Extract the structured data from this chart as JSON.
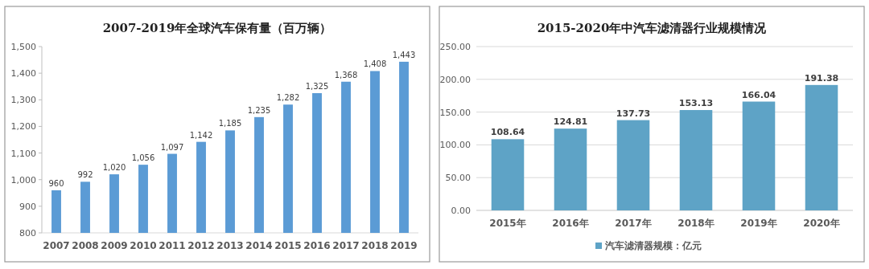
{
  "chart_data": [
    {
      "type": "bar",
      "title": "2007-2019年全球汽车保有量（百万辆）",
      "categories": [
        "2007",
        "2008",
        "2009",
        "2010",
        "2011",
        "2012",
        "2013",
        "2014",
        "2015",
        "2016",
        "2017",
        "2018",
        "2019"
      ],
      "values": [
        960,
        992,
        1020,
        1056,
        1097,
        1142,
        1185,
        1235,
        1282,
        1325,
        1368,
        1408,
        1443
      ],
      "value_labels": [
        "960",
        "992",
        "1,020",
        "1,056",
        "1,097",
        "1,142",
        "1,185",
        "1,235",
        "1,282",
        "1,325",
        "1,368",
        "1,408",
        "1,443"
      ],
      "color": "#5b9bd5",
      "ylim": [
        800,
        1500
      ],
      "yticks": [
        {
          "value": 800,
          "label": "800"
        },
        {
          "value": 900,
          "label": "900"
        },
        {
          "value": 1000,
          "label": "1,000"
        },
        {
          "value": 1100,
          "label": "1,100"
        },
        {
          "value": 1200,
          "label": "1,200"
        },
        {
          "value": 1300,
          "label": "1,300"
        },
        {
          "value": 1400,
          "label": "1,400"
        },
        {
          "value": 1500,
          "label": "1,500"
        }
      ],
      "grid": false,
      "legend": false
    },
    {
      "type": "bar",
      "title": "2015-2020年中汽车滤清器行业规模情况",
      "categories": [
        "2015年",
        "2016年",
        "2017年",
        "2018年",
        "2019年",
        "2020年"
      ],
      "series": [
        {
          "name": "汽车滤清器规模：亿元",
          "color": "#5ea3c6",
          "values": [
            108.64,
            124.81,
            137.73,
            153.13,
            166.04,
            191.38
          ]
        }
      ],
      "data_labels": true,
      "ylim": [
        0,
        250
      ],
      "yticks": [
        {
          "value": 0,
          "label": "0.00"
        },
        {
          "value": 50,
          "label": "50.00"
        },
        {
          "value": 100,
          "label": "100.00"
        },
        {
          "value": 150,
          "label": "150.00"
        },
        {
          "value": 200,
          "label": "200.00"
        },
        {
          "value": 250,
          "label": "250.00"
        }
      ],
      "grid": "y",
      "legend": "bottom"
    }
  ]
}
